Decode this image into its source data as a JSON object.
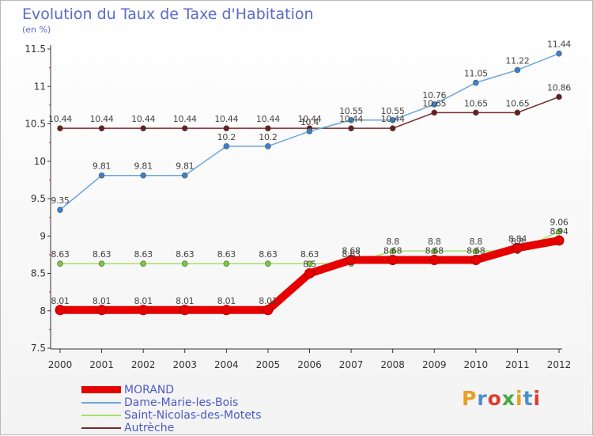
{
  "header": {
    "title": "Evolution du Taux de Taxe d'Habitation",
    "subtitle": "(en %)"
  },
  "logo": {
    "text": "Proxiti",
    "colors": [
      "#e8a020",
      "#4a8fd0",
      "#e23c2c",
      "#45a845",
      "#e8a020",
      "#4a8fd0",
      "#e23c2c"
    ]
  },
  "chart_data": {
    "type": "line",
    "title": "Evolution du Taux de Taxe d'Habitation",
    "ylabel": "(en %)",
    "xlabel": "",
    "x": [
      "2000",
      "2001",
      "2002",
      "2003",
      "2004",
      "2005",
      "2006",
      "2007",
      "2008",
      "2009",
      "2010",
      "2011",
      "2012"
    ],
    "ylim": [
      7.5,
      11.5
    ],
    "yticks": [
      "7.5",
      "8",
      "8.5",
      "9",
      "9.5",
      "10",
      "10.5",
      "11",
      "11.5"
    ],
    "grid": false,
    "legend": "bottom-left",
    "series": [
      {
        "name": "MORAND",
        "color": "#e60000",
        "values": [
          8.01,
          8.01,
          8.01,
          8.01,
          8.01,
          8.01,
          8.5,
          8.68,
          8.68,
          8.68,
          8.68,
          8.84,
          8.94
        ],
        "labels": [
          "8.01",
          "8.01",
          "8.01",
          "8.01",
          "8.01",
          "8.01",
          "8.5",
          "8.68",
          "8.68",
          "8.68",
          "8.68",
          "8.84",
          "8.94"
        ]
      },
      {
        "name": "Dame-Marie-les-Bois",
        "color": "#6aa6db",
        "marker": "#3c82c8",
        "values": [
          9.35,
          9.81,
          9.81,
          9.81,
          10.2,
          10.2,
          10.4,
          10.55,
          10.55,
          10.76,
          11.05,
          11.22,
          11.44
        ],
        "labels": [
          "9.35",
          "9.81",
          "9.81",
          "9.81",
          "10.2",
          "10.2",
          "10.4",
          "10.55",
          "10.55",
          "10.76",
          "11.05",
          "11.22",
          "11.44"
        ]
      },
      {
        "name": "Saint-Nicolas-des-Motets",
        "color": "#a6e06a",
        "marker": "#7ac83c",
        "values": [
          8.63,
          8.63,
          8.63,
          8.63,
          8.63,
          8.63,
          8.63,
          8.63,
          8.8,
          8.8,
          8.8,
          8.8,
          9.06
        ],
        "labels": [
          "8.63",
          "8.63",
          "8.63",
          "8.63",
          "8.63",
          "8.63",
          "8.63",
          "8.63",
          "8.8",
          "8.8",
          "8.8",
          "8.8",
          "9.06"
        ]
      },
      {
        "name": "Autrèche",
        "color": "#7a2828",
        "marker": "#6a1e1e",
        "values": [
          10.44,
          10.44,
          10.44,
          10.44,
          10.44,
          10.44,
          10.44,
          10.44,
          10.44,
          10.65,
          10.65,
          10.65,
          10.86
        ],
        "labels": [
          "10.44",
          "10.44",
          "10.44",
          "10.44",
          "10.44",
          "10.44",
          "10.44",
          "10.44",
          "10.44",
          "10.65",
          "10.65",
          "10.65",
          "10.86"
        ]
      }
    ]
  }
}
